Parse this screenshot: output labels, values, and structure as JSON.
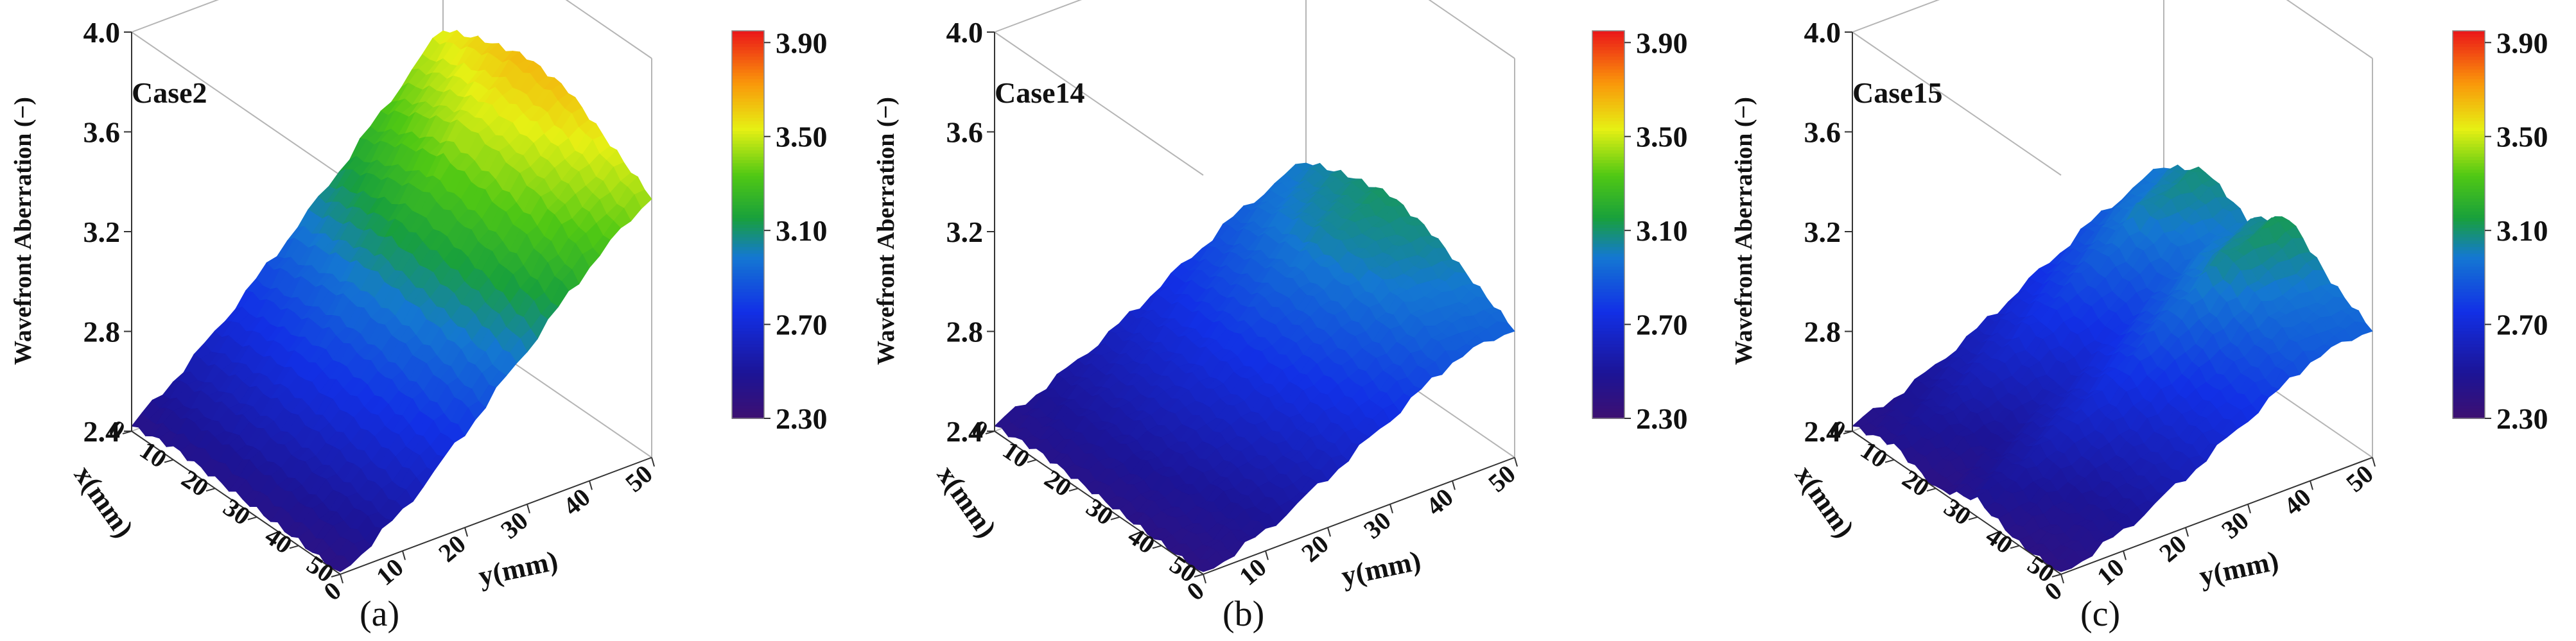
{
  "chart_data": [
    {
      "type": "surface3d",
      "panel_label": "(a)",
      "case_label": "Case2",
      "zlabel": "Wavefront Aberration  (−)",
      "xlabel": "x(mm)",
      "ylabel": "y(mm)",
      "zlim": [
        2.4,
        4.0
      ],
      "xlim": [
        0,
        50
      ],
      "ylim": [
        0,
        50
      ],
      "z_ticks": [
        "2.4",
        "2.8",
        "3.2",
        "3.6",
        "4.0"
      ],
      "x_ticks": [
        "0",
        "10",
        "20",
        "30",
        "40",
        "50"
      ],
      "y_ticks": [
        "0",
        "10",
        "20",
        "30",
        "40",
        "50"
      ],
      "colorbar": {
        "min": 2.3,
        "max": 3.95,
        "ticks": [
          "3.90",
          "3.50",
          "3.10",
          "2.70",
          "2.30"
        ]
      },
      "surface": {
        "x": [
          0,
          10,
          20,
          30,
          40,
          50
        ],
        "y": [
          0,
          10,
          20,
          30,
          40,
          50
        ],
        "z": [
          [
            2.42,
            2.6,
            2.82,
            3.05,
            3.3,
            3.55
          ],
          [
            2.45,
            2.63,
            2.86,
            3.12,
            3.4,
            3.62
          ],
          [
            2.44,
            2.65,
            2.9,
            3.18,
            3.48,
            3.67
          ],
          [
            2.43,
            2.63,
            2.88,
            3.15,
            3.45,
            3.65
          ],
          [
            2.42,
            2.6,
            2.84,
            3.1,
            3.38,
            3.55
          ],
          [
            2.4,
            2.56,
            2.78,
            3.02,
            3.26,
            3.45
          ]
        ]
      }
    },
    {
      "type": "surface3d",
      "panel_label": "(b)",
      "case_label": "Case14",
      "zlabel": "Wavefront Aberration  (−)",
      "xlabel": "x(mm)",
      "ylabel": "y(mm)",
      "zlim": [
        2.4,
        4.0
      ],
      "xlim": [
        0,
        50
      ],
      "ylim": [
        0,
        50
      ],
      "z_ticks": [
        "2.4",
        "2.8",
        "3.2",
        "3.6",
        "4.0"
      ],
      "x_ticks": [
        "0",
        "10",
        "20",
        "30",
        "40",
        "50"
      ],
      "y_ticks": [
        "0",
        "10",
        "20",
        "30",
        "40",
        "50"
      ],
      "colorbar": {
        "min": 2.3,
        "max": 3.95,
        "ticks": [
          "3.90",
          "3.50",
          "3.10",
          "2.70",
          "2.30"
        ]
      },
      "surface": {
        "x": [
          0,
          10,
          20,
          30,
          40,
          50
        ],
        "y": [
          0,
          10,
          20,
          30,
          40,
          50
        ],
        "z": [
          [
            2.42,
            2.52,
            2.64,
            2.78,
            2.92,
            3.02
          ],
          [
            2.44,
            2.55,
            2.68,
            2.84,
            3.0,
            3.08
          ],
          [
            2.43,
            2.56,
            2.7,
            2.88,
            3.05,
            3.12
          ],
          [
            2.42,
            2.54,
            2.68,
            2.85,
            3.02,
            3.08
          ],
          [
            2.41,
            2.51,
            2.64,
            2.8,
            2.96,
            3.0
          ],
          [
            2.4,
            2.48,
            2.6,
            2.74,
            2.88,
            2.92
          ]
        ]
      }
    },
    {
      "type": "surface3d",
      "panel_label": "(c)",
      "case_label": "Case15",
      "zlabel": "Wavefront Aberration  (−)",
      "xlabel": "x(mm)",
      "ylabel": "y(mm)",
      "zlim": [
        2.4,
        4.0
      ],
      "xlim": [
        0,
        50
      ],
      "ylim": [
        0,
        50
      ],
      "z_ticks": [
        "2.4",
        "2.8",
        "3.2",
        "3.6",
        "4.0"
      ],
      "x_ticks": [
        "0",
        "10",
        "20",
        "30",
        "40",
        "50"
      ],
      "y_ticks": [
        "0",
        "10",
        "20",
        "30",
        "40",
        "50"
      ],
      "colorbar": {
        "min": 2.3,
        "max": 3.95,
        "ticks": [
          "3.90",
          "3.50",
          "3.10",
          "2.70",
          "2.30"
        ]
      },
      "surface": {
        "x": [
          0,
          10,
          20,
          30,
          40,
          50
        ],
        "y": [
          0,
          10,
          20,
          30,
          40,
          50
        ],
        "z": [
          [
            2.42,
            2.5,
            2.62,
            2.76,
            2.9,
            3.0
          ],
          [
            2.46,
            2.56,
            2.7,
            2.86,
            3.04,
            3.1
          ],
          [
            2.4,
            2.5,
            2.62,
            2.78,
            2.94,
            3.02
          ],
          [
            2.47,
            2.58,
            2.72,
            2.9,
            3.08,
            3.14
          ],
          [
            2.41,
            2.5,
            2.63,
            2.78,
            2.95,
            3.0
          ],
          [
            2.4,
            2.48,
            2.6,
            2.74,
            2.88,
            2.92
          ]
        ]
      }
    }
  ]
}
